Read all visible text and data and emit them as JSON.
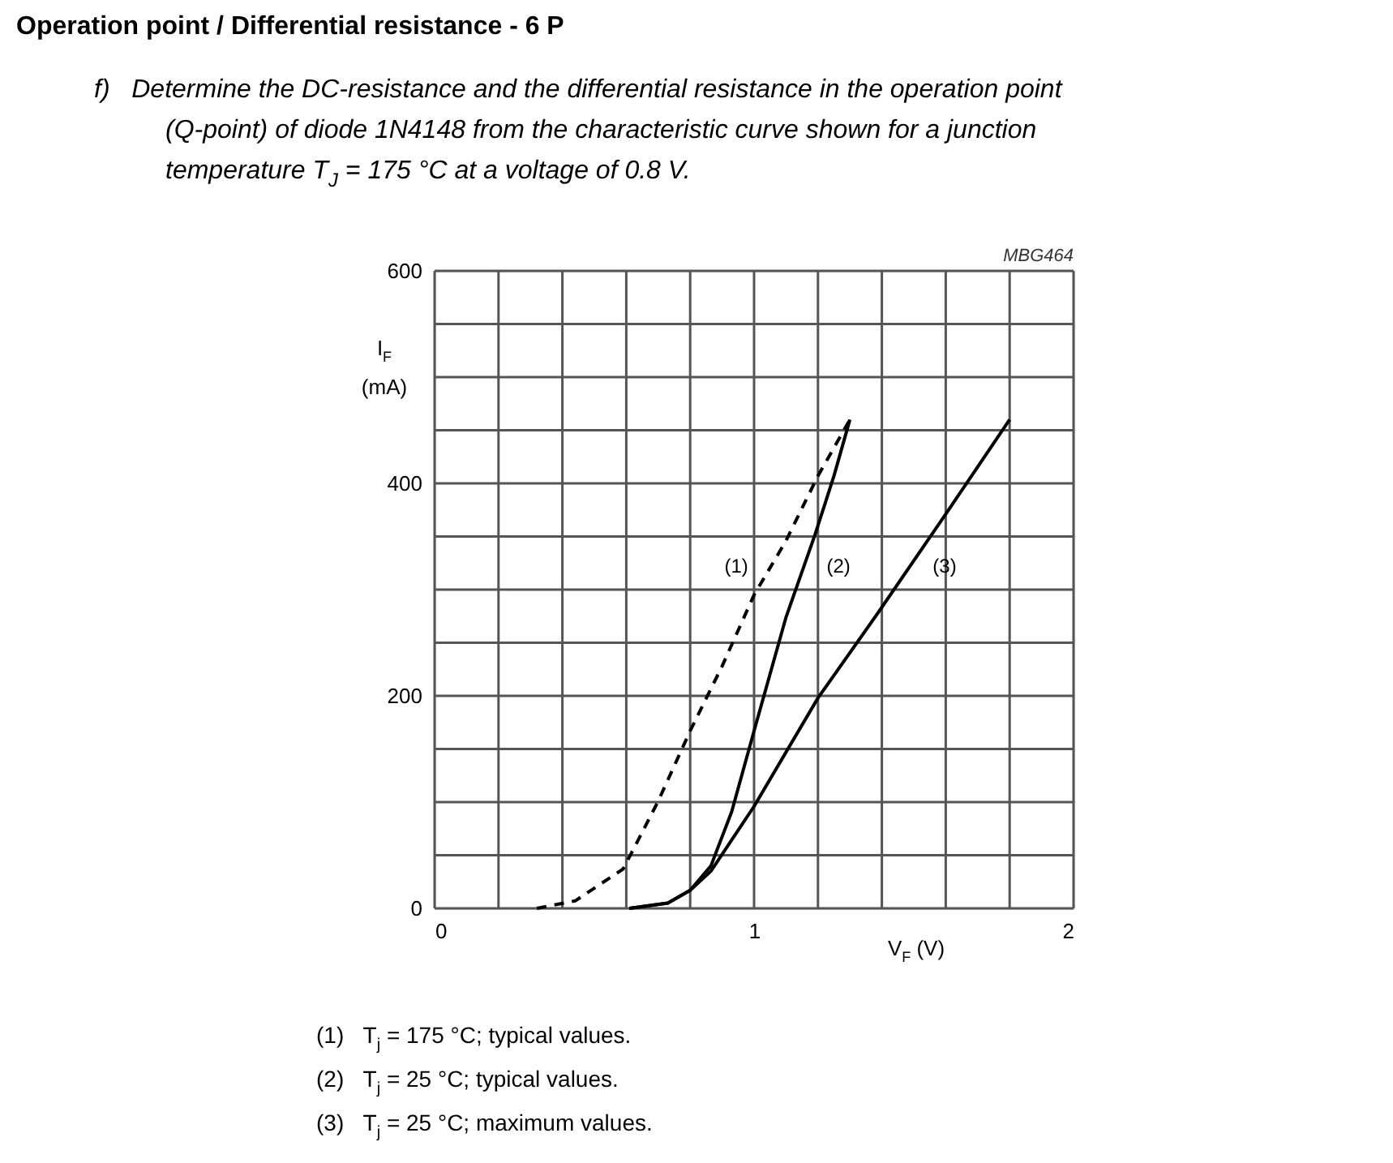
{
  "chart_data": {
    "type": "line",
    "title": "Operation point / Differential resistance - 6 P",
    "subtitle": "f)   Determine the DC-resistance and the differential resistance in the operation point\n(Q-point) of diode 1N4148 from the characteristic curve shown for a junction\ntemperature T$_{J}$ = 175 °C at a voltage of 0.8 V.",
    "xlabel": "V$_{F}$ (V)",
    "ylabel": "I$_{F}$\n(mA)",
    "xlim": [
      0,
      2
    ],
    "ylim": [
      0,
      600
    ],
    "xticks": [
      0,
      {
        "value": 0.2,
        "label": null
      },
      {
        "value": 0.4,
        "label": null
      },
      {
        "value": 0.6,
        "label": null
      },
      {
        "value": 0.8,
        "label": null
      },
      1,
      {
        "value": 1.2,
        "label": null
      },
      {
        "value": 1.4,
        "label": null
      },
      {
        "value": 1.6,
        "label": null
      },
      {
        "value": 1.8,
        "label": null
      },
      2
    ],
    "yticks": [
      0,
      {
        "value": 50,
        "label": null
      },
      {
        "value": 100,
        "label": null
      },
      {
        "value": 150,
        "label": null
      },
      200,
      {
        "value": 250,
        "label": null
      },
      {
        "value": 300,
        "label": null
      },
      {
        "value": 350,
        "label": null
      },
      400,
      {
        "value": 450,
        "label": null
      },
      {
        "value": 500,
        "label": null
      },
      {
        "value": 550,
        "label": null
      },
      600
    ],
    "grid": true,
    "series": [
      {
        "name": "(1)",
        "color": "#000000",
        "line_style": "dashed",
        "x": [
          0.32,
          0.44,
          0.59,
          0.63,
          0.7,
          0.8,
          0.9,
          1.0,
          1.1,
          1.2,
          1.3
        ],
        "values": [
          0,
          7,
          37,
          60,
          101,
          167,
          228,
          295,
          346,
          407,
          460
        ]
      },
      {
        "name": "(2)",
        "color": "#000000",
        "line_style": "solid",
        "x": [
          0.61,
          0.73,
          0.8,
          0.865,
          0.93,
          1.0,
          1.1,
          1.19,
          1.25,
          1.3
        ],
        "values": [
          0,
          5,
          17,
          40,
          91,
          167,
          274,
          351,
          407,
          460
        ]
      },
      {
        "name": "(3)",
        "color": "#000000",
        "line_style": "solid",
        "x": [
          0.61,
          0.73,
          0.8,
          0.865,
          1.0,
          1.2,
          1.39,
          1.6,
          1.8
        ],
        "values": [
          0,
          5,
          17,
          35,
          96,
          198,
          279,
          371,
          460
        ]
      }
    ],
    "annotations": [
      "MBG464",
      "(1)   T$_{j}$ = 175 °C; typical values.",
      "(2)   T$_{j}$ = 25 °C; typical values.",
      "(3)   T$_{j}$ = 25 °C; maximum values."
    ]
  }
}
